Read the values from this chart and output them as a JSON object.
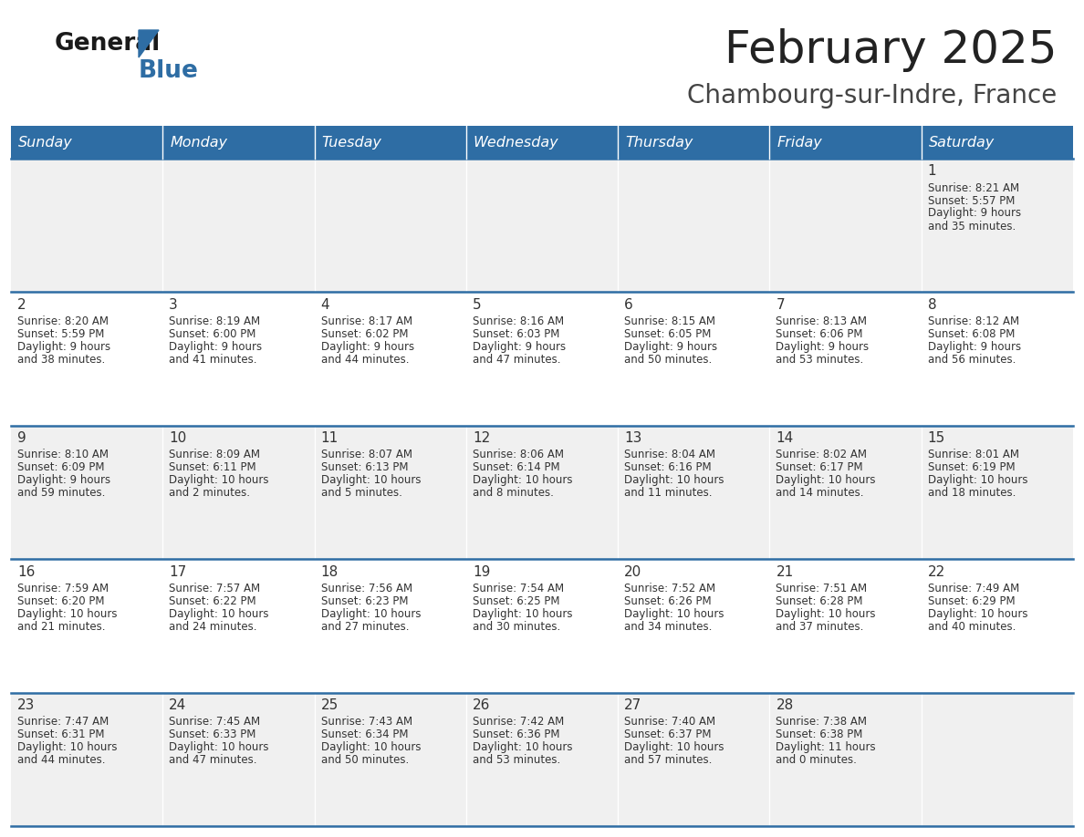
{
  "title": "February 2025",
  "subtitle": "Chambourg-sur-Indre, France",
  "days_of_week": [
    "Sunday",
    "Monday",
    "Tuesday",
    "Wednesday",
    "Thursday",
    "Friday",
    "Saturday"
  ],
  "header_bg": "#2E6DA4",
  "header_text_color": "#FFFFFF",
  "cell_bg_odd": "#F0F0F0",
  "cell_bg_even": "#FFFFFF",
  "cell_text_color": "#333333",
  "border_color": "#2E6DA4",
  "title_color": "#222222",
  "subtitle_color": "#444444",
  "logo_general_color": "#1a1a1a",
  "logo_blue_color": "#2E6DA4",
  "num_rows": 5,
  "num_cols": 7,
  "calendar_data": [
    [
      null,
      null,
      null,
      null,
      null,
      null,
      {
        "day": 1,
        "sunrise": "8:21 AM",
        "sunset": "5:57 PM",
        "daylight": "9 hours and 35 minutes."
      }
    ],
    [
      {
        "day": 2,
        "sunrise": "8:20 AM",
        "sunset": "5:59 PM",
        "daylight": "9 hours and 38 minutes."
      },
      {
        "day": 3,
        "sunrise": "8:19 AM",
        "sunset": "6:00 PM",
        "daylight": "9 hours and 41 minutes."
      },
      {
        "day": 4,
        "sunrise": "8:17 AM",
        "sunset": "6:02 PM",
        "daylight": "9 hours and 44 minutes."
      },
      {
        "day": 5,
        "sunrise": "8:16 AM",
        "sunset": "6:03 PM",
        "daylight": "9 hours and 47 minutes."
      },
      {
        "day": 6,
        "sunrise": "8:15 AM",
        "sunset": "6:05 PM",
        "daylight": "9 hours and 50 minutes."
      },
      {
        "day": 7,
        "sunrise": "8:13 AM",
        "sunset": "6:06 PM",
        "daylight": "9 hours and 53 minutes."
      },
      {
        "day": 8,
        "sunrise": "8:12 AM",
        "sunset": "6:08 PM",
        "daylight": "9 hours and 56 minutes."
      }
    ],
    [
      {
        "day": 9,
        "sunrise": "8:10 AM",
        "sunset": "6:09 PM",
        "daylight": "9 hours and 59 minutes."
      },
      {
        "day": 10,
        "sunrise": "8:09 AM",
        "sunset": "6:11 PM",
        "daylight": "10 hours and 2 minutes."
      },
      {
        "day": 11,
        "sunrise": "8:07 AM",
        "sunset": "6:13 PM",
        "daylight": "10 hours and 5 minutes."
      },
      {
        "day": 12,
        "sunrise": "8:06 AM",
        "sunset": "6:14 PM",
        "daylight": "10 hours and 8 minutes."
      },
      {
        "day": 13,
        "sunrise": "8:04 AM",
        "sunset": "6:16 PM",
        "daylight": "10 hours and 11 minutes."
      },
      {
        "day": 14,
        "sunrise": "8:02 AM",
        "sunset": "6:17 PM",
        "daylight": "10 hours and 14 minutes."
      },
      {
        "day": 15,
        "sunrise": "8:01 AM",
        "sunset": "6:19 PM",
        "daylight": "10 hours and 18 minutes."
      }
    ],
    [
      {
        "day": 16,
        "sunrise": "7:59 AM",
        "sunset": "6:20 PM",
        "daylight": "10 hours and 21 minutes."
      },
      {
        "day": 17,
        "sunrise": "7:57 AM",
        "sunset": "6:22 PM",
        "daylight": "10 hours and 24 minutes."
      },
      {
        "day": 18,
        "sunrise": "7:56 AM",
        "sunset": "6:23 PM",
        "daylight": "10 hours and 27 minutes."
      },
      {
        "day": 19,
        "sunrise": "7:54 AM",
        "sunset": "6:25 PM",
        "daylight": "10 hours and 30 minutes."
      },
      {
        "day": 20,
        "sunrise": "7:52 AM",
        "sunset": "6:26 PM",
        "daylight": "10 hours and 34 minutes."
      },
      {
        "day": 21,
        "sunrise": "7:51 AM",
        "sunset": "6:28 PM",
        "daylight": "10 hours and 37 minutes."
      },
      {
        "day": 22,
        "sunrise": "7:49 AM",
        "sunset": "6:29 PM",
        "daylight": "10 hours and 40 minutes."
      }
    ],
    [
      {
        "day": 23,
        "sunrise": "7:47 AM",
        "sunset": "6:31 PM",
        "daylight": "10 hours and 44 minutes."
      },
      {
        "day": 24,
        "sunrise": "7:45 AM",
        "sunset": "6:33 PM",
        "daylight": "10 hours and 47 minutes."
      },
      {
        "day": 25,
        "sunrise": "7:43 AM",
        "sunset": "6:34 PM",
        "daylight": "10 hours and 50 minutes."
      },
      {
        "day": 26,
        "sunrise": "7:42 AM",
        "sunset": "6:36 PM",
        "daylight": "10 hours and 53 minutes."
      },
      {
        "day": 27,
        "sunrise": "7:40 AM",
        "sunset": "6:37 PM",
        "daylight": "10 hours and 57 minutes."
      },
      {
        "day": 28,
        "sunrise": "7:38 AM",
        "sunset": "6:38 PM",
        "daylight": "11 hours and 0 minutes."
      },
      null
    ]
  ]
}
